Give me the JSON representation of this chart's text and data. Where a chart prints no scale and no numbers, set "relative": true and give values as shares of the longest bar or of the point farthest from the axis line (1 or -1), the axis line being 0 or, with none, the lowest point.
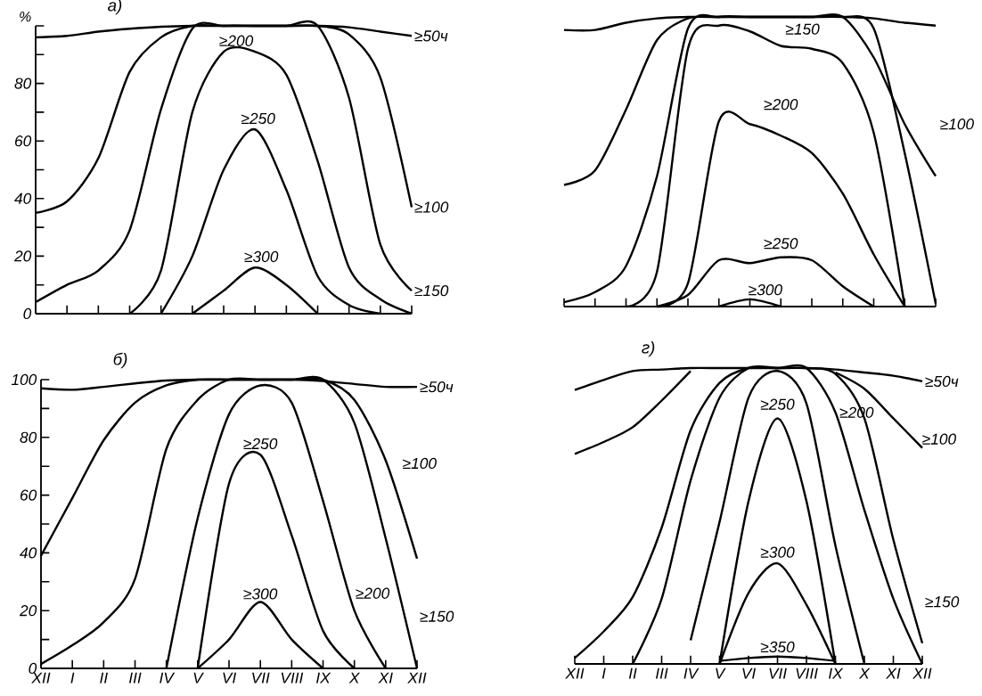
{
  "chart_data": [
    {
      "type": "line",
      "title": "а)",
      "ylabel": "%",
      "categories": [
        null,
        null,
        null,
        null,
        null,
        null,
        null,
        null,
        null,
        null,
        null,
        null,
        null
      ],
      "ylim": [
        0,
        100
      ],
      "yticks": [
        0,
        {
          "value": 10,
          "label": null
        },
        20,
        {
          "value": 30,
          "label": null
        },
        40,
        {
          "value": 50,
          "label": null
        },
        60,
        {
          "value": 70,
          "label": null
        },
        80,
        {
          "value": 90,
          "label": null
        },
        {
          "value": 100,
          "label": null
        }
      ],
      "tick_labels": "y",
      "series": [
        {
          "color": "#000000",
          "values": [
            96,
            96.5,
            98,
            99,
            99.7,
            100,
            100,
            100,
            100,
            100,
            99.5,
            98,
            96.5
          ]
        },
        {
          "color": "#000000",
          "values": [
            35,
            39,
            54,
            84,
            96,
            100,
            100,
            100,
            100,
            100,
            97,
            82,
            37
          ]
        },
        {
          "color": "#000000",
          "values": [
            4,
            10,
            15,
            29,
            71,
            99,
            100,
            100,
            100,
            100,
            75,
            24,
            8
          ]
        },
        {
          "color": "#000000",
          "values": [
            null,
            null,
            null,
            0,
            15,
            70,
            91,
            91,
            83,
            53,
            16,
            5,
            0
          ]
        },
        {
          "color": "#000000",
          "values": [
            null,
            null,
            null,
            null,
            0,
            20,
            50,
            64,
            43,
            13,
            3,
            0,
            null
          ]
        },
        {
          "color": "#000000",
          "values": [
            null,
            null,
            null,
            null,
            null,
            0,
            8,
            16,
            10,
            0,
            null,
            null,
            null
          ]
        }
      ],
      "annotations": [
        "≥50ч",
        "≥100",
        "≥150",
        "≥200",
        "≥250",
        "≥300"
      ]
    },
    {
      "type": "line",
      "relative": true,
      "categories": [
        null,
        null,
        null,
        null,
        null,
        null,
        null,
        null,
        null,
        null,
        null,
        null,
        null
      ],
      "series": [
        {
          "color": "#000000",
          "values": [
            0.955,
            0.955,
            0.98,
            0.995,
            1,
            1,
            1,
            1,
            1,
            1,
            0.995,
            0.98,
            0.97
          ]
        },
        {
          "color": "#000000",
          "values": [
            0.42,
            0.47,
            0.68,
            0.92,
            0.995,
            1,
            1,
            1,
            1,
            1,
            0.86,
            0.63,
            0.45
          ]
        },
        {
          "color": "#000000",
          "values": [
            0.015,
            0.05,
            0.14,
            0.45,
            0.96,
            1,
            1,
            1,
            1,
            1,
            0.96,
            0.53,
            0.01
          ]
        },
        {
          "color": "#000000",
          "values": [
            null,
            null,
            0,
            0.12,
            0.89,
            0.97,
            0.95,
            0.9,
            0.89,
            0.84,
            0.6,
            0,
            null
          ]
        },
        {
          "color": "#000000",
          "values": [
            null,
            null,
            null,
            0,
            0.08,
            0.64,
            0.63,
            0.59,
            0.53,
            0.39,
            0.18,
            0,
            null
          ]
        },
        {
          "color": "#000000",
          "values": [
            null,
            null,
            null,
            0,
            0.04,
            0.16,
            0.15,
            0.17,
            0.16,
            0.07,
            0,
            null,
            null
          ]
        },
        {
          "color": "#000000",
          "values": [
            null,
            null,
            null,
            null,
            null,
            0,
            0.025,
            0,
            null,
            null,
            null,
            null,
            null
          ]
        }
      ],
      "annotations": [
        "≥150",
        "≥200",
        "≥250",
        "≥300",
        "≥100"
      ]
    },
    {
      "type": "line",
      "title": "б)",
      "categories": [
        "XII",
        "I",
        "II",
        "III",
        "IV",
        "V",
        "VI",
        "VII",
        "VIII",
        "IX",
        "X",
        "XI",
        "XII"
      ],
      "ylim": [
        0,
        100
      ],
      "yticks": [
        0,
        {
          "value": 10,
          "label": null
        },
        20,
        {
          "value": 30,
          "label": null
        },
        40,
        {
          "value": 50,
          "label": null
        },
        60,
        {
          "value": 70,
          "label": null
        },
        80,
        {
          "value": 90,
          "label": null
        },
        100
      ],
      "series": [
        {
          "color": "#000000",
          "values": [
            97,
            96.5,
            97.5,
            98.7,
            99.7,
            100,
            100,
            100,
            100,
            99.5,
            98.5,
            97.5,
            97.5
          ]
        },
        {
          "color": "#000000",
          "values": [
            39,
            59,
            79,
            92,
            98,
            100,
            100,
            100,
            100,
            100,
            93,
            72,
            38
          ]
        },
        {
          "color": "#000000",
          "values": [
            1.5,
            8,
            16,
            31,
            76,
            93,
            100,
            100,
            100,
            100,
            85,
            45,
            0
          ]
        },
        {
          "color": "#000000",
          "values": [
            null,
            null,
            null,
            null,
            0,
            52,
            88,
            98,
            92,
            58,
            20,
            0,
            null
          ]
        },
        {
          "color": "#000000",
          "values": [
            null,
            null,
            null,
            null,
            null,
            0,
            64,
            74,
            46,
            13,
            0,
            null,
            null
          ]
        },
        {
          "color": "#000000",
          "values": [
            null,
            null,
            null,
            null,
            null,
            0,
            10,
            23,
            10,
            0,
            null,
            null,
            null
          ]
        }
      ],
      "annotations": [
        "≥50ч",
        "≥100",
        "≥200",
        "≥150",
        "≥250",
        "≥300"
      ]
    },
    {
      "type": "line",
      "title": "г)",
      "relative": true,
      "categories": [
        "XII",
        "I",
        "II",
        "III",
        "IV",
        "V",
        "VI",
        "VII",
        "VIII",
        "IX",
        "X",
        "XI",
        "XII"
      ],
      "series": [
        {
          "color": "#000000",
          "values": [
            0.926,
            0.96,
            0.99,
            0.995,
            1,
            1,
            1,
            1,
            1,
            0.995,
            0.985,
            0.974,
            0.955
          ]
        },
        {
          "color": "#000000",
          "values": [
            0.71,
            0.75,
            0.8,
            0.89,
            0.99,
            null,
            null,
            null,
            null,
            0.985,
            0.93,
            0.83,
            0.73
          ]
        },
        {
          "color": "#000000",
          "values": [
            0.02,
            0.11,
            0.226,
            0.46,
            0.79,
            0.95,
            1,
            1,
            1,
            0.98,
            0.83,
            0.42,
            0.07
          ]
        },
        {
          "color": "#000000",
          "values": [
            null,
            null,
            0,
            0.22,
            0.62,
            0.9,
            1,
            1,
            1,
            0.85,
            0.52,
            0.22,
            0
          ]
        },
        {
          "color": "#000000",
          "values": [
            null,
            null,
            null,
            null,
            0.08,
            0.48,
            0.9,
            0.99,
            0.88,
            0.4,
            0,
            null,
            null
          ]
        },
        {
          "color": "#000000",
          "values": [
            null,
            null,
            null,
            null,
            null,
            0,
            0.55,
            0.83,
            0.55,
            0,
            null,
            null,
            null
          ]
        },
        {
          "color": "#000000",
          "values": [
            null,
            null,
            null,
            null,
            null,
            0,
            0.24,
            0.34,
            0.2,
            0,
            null,
            null,
            null
          ]
        },
        {
          "color": "#000000",
          "values": [
            null,
            null,
            null,
            null,
            null,
            0.01,
            0.02,
            0.025,
            0.02,
            0.01,
            null,
            null,
            null
          ]
        }
      ],
      "annotations": [
        "≥50ч",
        "≥100",
        "≥150",
        "≥200",
        "≥250",
        "≥300",
        "≥350"
      ]
    }
  ]
}
